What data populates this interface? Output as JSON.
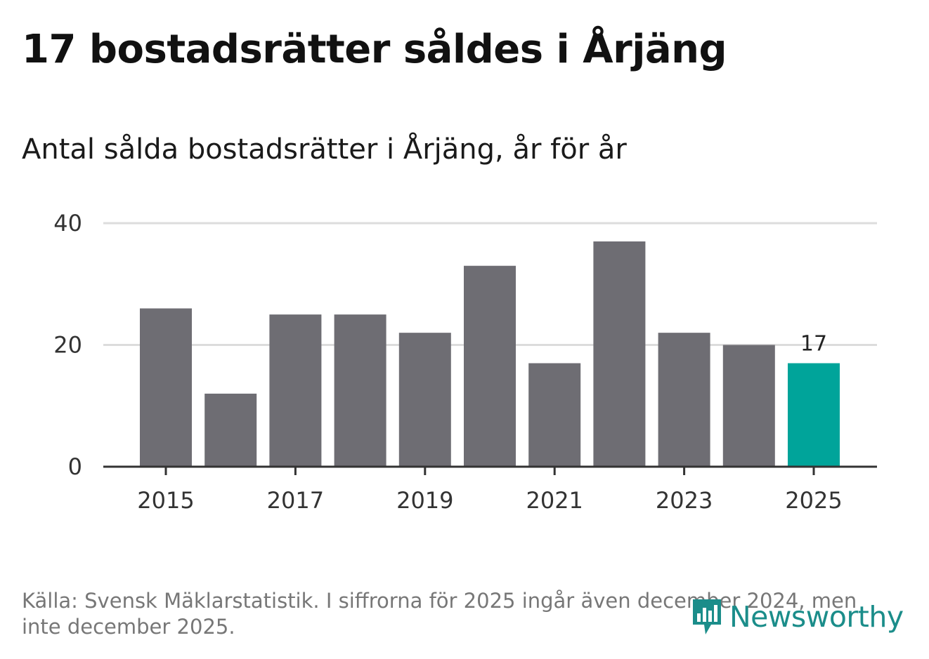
{
  "title": "17 bostadsrätter såldes i Årjäng",
  "subtitle": "Antal sålda bostadsrätter i Årjäng, år för år",
  "chart_data": {
    "type": "bar",
    "categories": [
      "2015",
      "2016",
      "2017",
      "2018",
      "2019",
      "2020",
      "2021",
      "2022",
      "2023",
      "2024",
      "2025"
    ],
    "values": [
      26,
      12,
      25,
      25,
      22,
      33,
      17,
      37,
      22,
      20,
      17
    ],
    "highlight_index": 10,
    "highlight_label": "17",
    "ylim": [
      0,
      40
    ],
    "yticks": [
      0,
      20,
      40
    ],
    "ytick_labels": [
      "0",
      "20",
      "40"
    ],
    "xtick_labels": [
      "2015",
      "2017",
      "2019",
      "2021",
      "2023",
      "2025"
    ],
    "xlabel": "",
    "ylabel": "",
    "grid": true,
    "bar_color": "#6e6d73",
    "highlight_color": "#00a49a"
  },
  "source": "Källa: Svensk Mäklarstatistik. I siffrorna för 2025 ingår även december 2024, men inte december 2025.",
  "brand": {
    "name": "Newsworthy",
    "color": "#1b8d8a"
  }
}
